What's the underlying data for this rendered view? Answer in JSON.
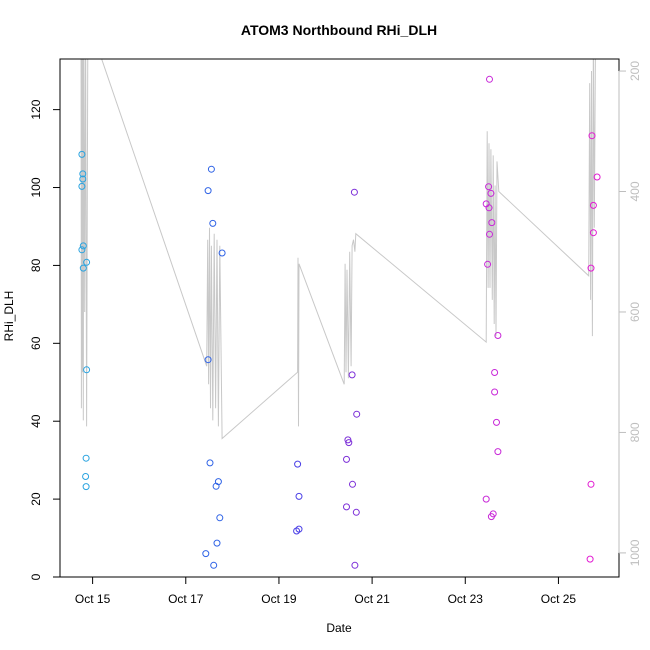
{
  "chart_data": {
    "type": "scatter",
    "title": "ATOM3 Northbound RHi_DLH",
    "xlabel": "Date",
    "ylabel": "RHi_DLH",
    "x_unit": "days (October)",
    "xlim": [
      14.3,
      26.3
    ],
    "ylim": [
      0,
      133
    ],
    "x_ticks": [
      {
        "value": 15,
        "label": "Oct 15"
      },
      {
        "value": 17,
        "label": "Oct 17"
      },
      {
        "value": 19,
        "label": "Oct 19"
      },
      {
        "value": 21,
        "label": "Oct 21"
      },
      {
        "value": 23,
        "label": "Oct 23"
      },
      {
        "value": 25,
        "label": "Oct 25"
      }
    ],
    "y_ticks": [
      0,
      20,
      40,
      60,
      80,
      100,
      120
    ],
    "right_axis": {
      "ticks": [
        200,
        400,
        600,
        800,
        1000
      ],
      "range": [
        180,
        1040
      ],
      "inverted": true,
      "color": "#bebebe"
    },
    "grid": false,
    "legend": "none",
    "points": [
      {
        "x": 14.77,
        "y": 108.5,
        "color": "#29a3e0"
      },
      {
        "x": 14.79,
        "y": 103.5,
        "color": "#29a3e0"
      },
      {
        "x": 14.79,
        "y": 102.2,
        "color": "#29a3e0"
      },
      {
        "x": 14.77,
        "y": 100.3,
        "color": "#29a3e0"
      },
      {
        "x": 14.8,
        "y": 85.0,
        "color": "#29a3e0"
      },
      {
        "x": 14.77,
        "y": 84.0,
        "color": "#29a3e0"
      },
      {
        "x": 14.87,
        "y": 80.8,
        "color": "#29a3e0"
      },
      {
        "x": 14.8,
        "y": 79.3,
        "color": "#29a3e0"
      },
      {
        "x": 14.87,
        "y": 53.2,
        "color": "#29a3e0"
      },
      {
        "x": 14.86,
        "y": 30.5,
        "color": "#29a3e0"
      },
      {
        "x": 14.85,
        "y": 25.8,
        "color": "#29a3e0"
      },
      {
        "x": 14.86,
        "y": 23.2,
        "color": "#29a3e0"
      },
      {
        "x": 17.55,
        "y": 104.7,
        "color": "#2f63e6"
      },
      {
        "x": 17.48,
        "y": 99.2,
        "color": "#2f63e6"
      },
      {
        "x": 17.58,
        "y": 90.8,
        "color": "#2f63e6"
      },
      {
        "x": 17.78,
        "y": 83.2,
        "color": "#2f63e6"
      },
      {
        "x": 17.48,
        "y": 55.8,
        "color": "#2f63e6"
      },
      {
        "x": 17.52,
        "y": 29.3,
        "color": "#2f63e6"
      },
      {
        "x": 17.7,
        "y": 24.5,
        "color": "#2f63e6"
      },
      {
        "x": 17.65,
        "y": 23.3,
        "color": "#2f63e6"
      },
      {
        "x": 17.73,
        "y": 15.2,
        "color": "#2f63e6"
      },
      {
        "x": 17.67,
        "y": 8.7,
        "color": "#2f63e6"
      },
      {
        "x": 17.43,
        "y": 6.0,
        "color": "#2f63e6"
      },
      {
        "x": 17.6,
        "y": 3.0,
        "color": "#2f63e6"
      },
      {
        "x": 19.4,
        "y": 29.0,
        "color": "#4a3fe6"
      },
      {
        "x": 19.43,
        "y": 20.7,
        "color": "#4a3fe6"
      },
      {
        "x": 19.43,
        "y": 12.3,
        "color": "#4a3fe6"
      },
      {
        "x": 19.38,
        "y": 11.8,
        "color": "#4a3fe6"
      },
      {
        "x": 20.62,
        "y": 98.8,
        "color": "#7c2fd8"
      },
      {
        "x": 20.57,
        "y": 51.9,
        "color": "#7c2fd8"
      },
      {
        "x": 20.67,
        "y": 41.8,
        "color": "#7c2fd8"
      },
      {
        "x": 20.48,
        "y": 35.2,
        "color": "#7c2fd8"
      },
      {
        "x": 20.5,
        "y": 34.5,
        "color": "#7c2fd8"
      },
      {
        "x": 20.45,
        "y": 30.2,
        "color": "#7c2fd8"
      },
      {
        "x": 20.58,
        "y": 23.8,
        "color": "#7c2fd8"
      },
      {
        "x": 20.45,
        "y": 18.0,
        "color": "#7c2fd8"
      },
      {
        "x": 20.66,
        "y": 16.6,
        "color": "#7c2fd8"
      },
      {
        "x": 20.63,
        "y": 3.0,
        "color": "#7c2fd8"
      },
      {
        "x": 23.52,
        "y": 127.8,
        "color": "#c828d8"
      },
      {
        "x": 23.5,
        "y": 100.2,
        "color": "#c828d8"
      },
      {
        "x": 23.55,
        "y": 98.5,
        "color": "#c828d8"
      },
      {
        "x": 23.45,
        "y": 95.8,
        "color": "#c828d8"
      },
      {
        "x": 23.51,
        "y": 94.8,
        "color": "#c828d8"
      },
      {
        "x": 23.57,
        "y": 91.0,
        "color": "#c828d8"
      },
      {
        "x": 23.52,
        "y": 88.0,
        "color": "#c828d8"
      },
      {
        "x": 23.48,
        "y": 80.3,
        "color": "#c828d8"
      },
      {
        "x": 23.7,
        "y": 62.0,
        "color": "#c828d8"
      },
      {
        "x": 23.63,
        "y": 52.5,
        "color": "#c828d8"
      },
      {
        "x": 23.63,
        "y": 47.5,
        "color": "#c828d8"
      },
      {
        "x": 23.67,
        "y": 39.7,
        "color": "#c828d8"
      },
      {
        "x": 23.7,
        "y": 32.2,
        "color": "#c828d8"
      },
      {
        "x": 23.45,
        "y": 20.0,
        "color": "#c828d8"
      },
      {
        "x": 23.6,
        "y": 16.2,
        "color": "#c828d8"
      },
      {
        "x": 23.56,
        "y": 15.5,
        "color": "#c828d8"
      },
      {
        "x": 25.72,
        "y": 113.3,
        "color": "#e21bd2"
      },
      {
        "x": 25.83,
        "y": 102.7,
        "color": "#e21bd2"
      },
      {
        "x": 25.75,
        "y": 95.4,
        "color": "#e21bd2"
      },
      {
        "x": 25.75,
        "y": 88.4,
        "color": "#e21bd2"
      },
      {
        "x": 25.7,
        "y": 79.3,
        "color": "#e21bd2"
      },
      {
        "x": 25.7,
        "y": 23.8,
        "color": "#e21bd2"
      },
      {
        "x": 25.68,
        "y": 4.6,
        "color": "#e21bd2"
      }
    ],
    "line_series": {
      "axis": "right",
      "color": "#c8c8c8",
      "points": [
        [
          14.75,
          100
        ],
        [
          14.76,
          760
        ],
        [
          14.77,
          120
        ],
        [
          14.78,
          700
        ],
        [
          14.79,
          110
        ],
        [
          14.8,
          780
        ],
        [
          14.81,
          120
        ],
        [
          14.83,
          600
        ],
        [
          14.85,
          100
        ],
        [
          14.87,
          790
        ],
        [
          14.9,
          100
        ],
        [
          15.15,
          170
        ],
        [
          17.45,
          690
        ],
        [
          17.47,
          480
        ],
        [
          17.49,
          720
        ],
        [
          17.51,
          460
        ],
        [
          17.53,
          760
        ],
        [
          17.55,
          490
        ],
        [
          17.58,
          780
        ],
        [
          17.61,
          470
        ],
        [
          17.64,
          760
        ],
        [
          17.67,
          480
        ],
        [
          17.7,
          790
        ],
        [
          17.73,
          490
        ],
        [
          17.78,
          810
        ],
        [
          19.4,
          700
        ],
        [
          19.41,
          510
        ],
        [
          19.42,
          790
        ],
        [
          19.43,
          520
        ],
        [
          20.4,
          720
        ],
        [
          20.42,
          520
        ],
        [
          20.44,
          700
        ],
        [
          20.46,
          530
        ],
        [
          20.49,
          710
        ],
        [
          20.52,
          500
        ],
        [
          20.55,
          690
        ],
        [
          20.57,
          490
        ],
        [
          20.6,
          480
        ],
        [
          20.63,
          500
        ],
        [
          20.65,
          470
        ],
        [
          23.45,
          650
        ],
        [
          23.47,
          300
        ],
        [
          23.49,
          560
        ],
        [
          23.51,
          320
        ],
        [
          23.53,
          560
        ],
        [
          23.55,
          330
        ],
        [
          23.58,
          580
        ],
        [
          23.6,
          340
        ],
        [
          23.62,
          620
        ],
        [
          23.64,
          390
        ],
        [
          23.66,
          640
        ],
        [
          23.68,
          350
        ],
        [
          23.72,
          400
        ],
        [
          25.65,
          540
        ],
        [
          25.67,
          220
        ],
        [
          25.69,
          580
        ],
        [
          25.71,
          200
        ],
        [
          25.73,
          640
        ],
        [
          25.75,
          120
        ],
        [
          25.77,
          460
        ],
        [
          25.8,
          100
        ]
      ]
    }
  }
}
